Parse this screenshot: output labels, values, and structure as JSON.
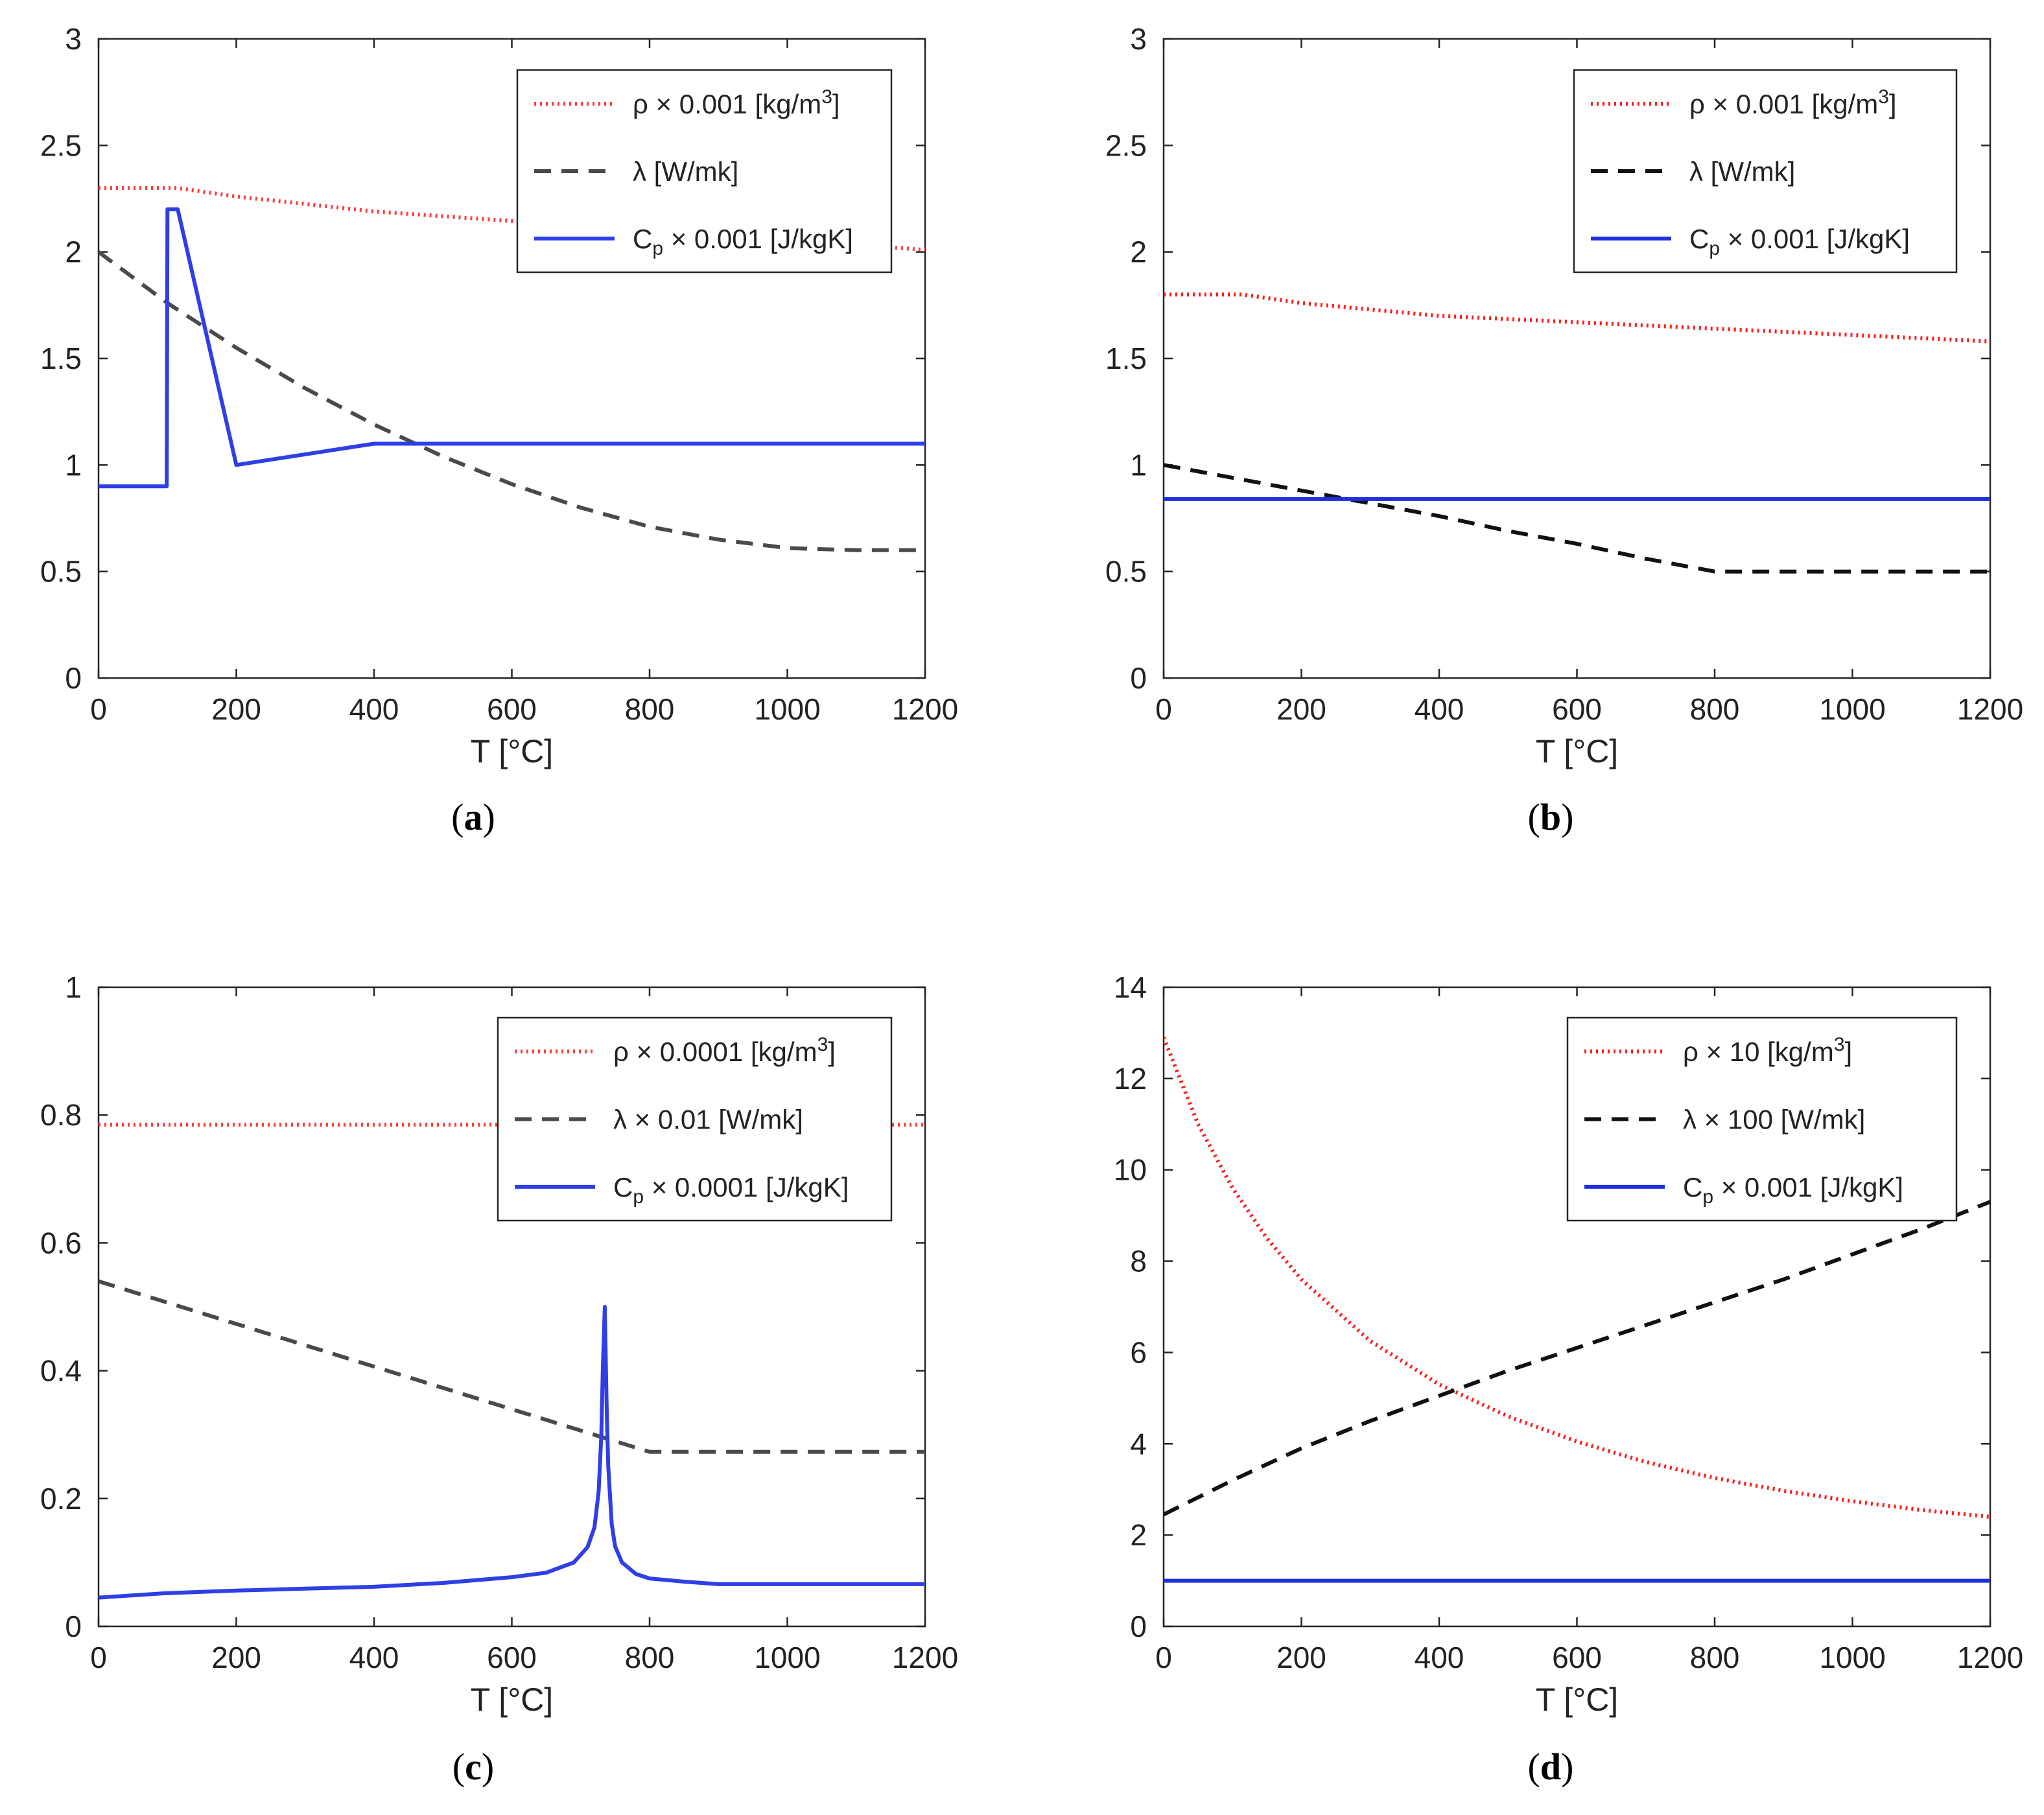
{
  "chart_data": [
    {
      "type": "line",
      "caption": "a",
      "xlabel": "T [°C]",
      "ylabel": "",
      "xlim": [
        0,
        1200
      ],
      "ylim": [
        0,
        3
      ],
      "xticks": [
        0,
        200,
        400,
        600,
        800,
        1000,
        1200
      ],
      "yticks": [
        0,
        0.5,
        1,
        1.5,
        2,
        2.5,
        3
      ],
      "ytick_labels": [
        "0",
        "0.5",
        "1",
        "1.5",
        "2",
        "2.5",
        "3"
      ],
      "legend": "top-right",
      "series": [
        {
          "name": "rho",
          "label_main": "ρ × 0.001 [kg/m",
          "label_sup": "3",
          "label_end": "]",
          "style": "dotted",
          "color": "#ff3b3b",
          "x": [
            0,
            115,
            200,
            400,
            1200
          ],
          "y": [
            2.3,
            2.3,
            2.26,
            2.19,
            2.01
          ]
        },
        {
          "name": "lambda",
          "label_main": "λ [W/mk]",
          "style": "dashed",
          "color": "#4a4a4a",
          "x": [
            0,
            100,
            200,
            300,
            400,
            500,
            600,
            700,
            800,
            900,
            1000,
            1100,
            1200
          ],
          "y": [
            2.0,
            1.76,
            1.55,
            1.36,
            1.19,
            1.04,
            0.91,
            0.8,
            0.71,
            0.65,
            0.61,
            0.6,
            0.6
          ]
        },
        {
          "name": "cp",
          "label_main": "C",
          "label_sub": "p",
          "label_end": " × 0.001 [J/kgK]",
          "style": "solid",
          "color": "#2f3fe6",
          "x": [
            0,
            99,
            100,
            115,
            200,
            400,
            1200
          ],
          "y": [
            0.9,
            0.9,
            2.2,
            2.2,
            1.0,
            1.1,
            1.1
          ]
        }
      ]
    },
    {
      "type": "line",
      "caption": "b",
      "xlabel": "T [°C]",
      "ylabel": "",
      "xlim": [
        0,
        1200
      ],
      "ylim": [
        0,
        3
      ],
      "xticks": [
        0,
        200,
        400,
        600,
        800,
        1000,
        1200
      ],
      "yticks": [
        0,
        0.5,
        1,
        1.5,
        2,
        2.5,
        3
      ],
      "ytick_labels": [
        "0",
        "0.5",
        "1",
        "1.5",
        "2",
        "2.5",
        "3"
      ],
      "legend": "top-right",
      "series": [
        {
          "name": "rho",
          "label_main": "ρ × 0.001 [kg/m",
          "label_sup": "3",
          "label_end": "]",
          "style": "dotted",
          "color": "#ff1a1a",
          "x": [
            0,
            115,
            200,
            400,
            1200
          ],
          "y": [
            1.8,
            1.8,
            1.76,
            1.7,
            1.58
          ]
        },
        {
          "name": "lambda",
          "label_main": "λ [W/mk]",
          "style": "dashed",
          "color": "#111111",
          "x": [
            0,
            100,
            200,
            300,
            400,
            500,
            600,
            700,
            800,
            1200
          ],
          "y": [
            1.0,
            0.94,
            0.88,
            0.82,
            0.76,
            0.69,
            0.63,
            0.56,
            0.5,
            0.5
          ]
        },
        {
          "name": "cp",
          "label_main": "C",
          "label_sub": "p",
          "label_end": " × 0.001  [J/kgK]",
          "style": "solid",
          "color": "#1f2fe0",
          "x": [
            0,
            1200
          ],
          "y": [
            0.84,
            0.84
          ]
        }
      ]
    },
    {
      "type": "line",
      "caption": "c",
      "xlabel": "T [°C]",
      "ylabel": "",
      "xlim": [
        0,
        1200
      ],
      "ylim": [
        0,
        1
      ],
      "xticks": [
        0,
        200,
        400,
        600,
        800,
        1000,
        1200
      ],
      "yticks": [
        0,
        0.2,
        0.4,
        0.6,
        0.8,
        1
      ],
      "ytick_labels": [
        "0",
        "0.2",
        "0.4",
        "0.6",
        "0.8",
        "1"
      ],
      "legend": "top-right",
      "series": [
        {
          "name": "rho",
          "label_main": "ρ × 0.0001 [kg/m",
          "label_sup": "3",
          "label_end": "]",
          "style": "dotted",
          "color": "#ff3b3b",
          "x": [
            0,
            1200
          ],
          "y": [
            0.785,
            0.785
          ]
        },
        {
          "name": "lambda",
          "label_main": "λ × 0.01 [W/mk]",
          "style": "dashed",
          "color": "#4a4a4a",
          "x": [
            0,
            800,
            1200
          ],
          "y": [
            0.54,
            0.273,
            0.273
          ]
        },
        {
          "name": "cp",
          "label_main": "C",
          "label_sub": "p",
          "label_end": " × 0.0001 [J/kgK]",
          "style": "solid",
          "color": "#2f3fe6",
          "x": [
            0,
            100,
            200,
            300,
            400,
            500,
            600,
            650,
            690,
            710,
            720,
            726,
            730,
            732,
            735,
            738,
            740,
            745,
            750,
            760,
            780,
            800,
            850,
            900,
            1200
          ],
          "y": [
            0.045,
            0.052,
            0.056,
            0.059,
            0.062,
            0.068,
            0.077,
            0.084,
            0.1,
            0.124,
            0.155,
            0.21,
            0.3,
            0.4,
            0.5,
            0.33,
            0.25,
            0.16,
            0.125,
            0.1,
            0.082,
            0.075,
            0.07,
            0.066,
            0.066
          ]
        }
      ]
    },
    {
      "type": "line",
      "caption": "d",
      "xlabel": "T [°C]",
      "ylabel": "",
      "xlim": [
        0,
        1200
      ],
      "ylim": [
        0,
        14
      ],
      "xticks": [
        0,
        200,
        400,
        600,
        800,
        1000,
        1200
      ],
      "yticks": [
        0,
        2,
        4,
        6,
        8,
        10,
        12,
        14
      ],
      "ytick_labels": [
        "0",
        "2",
        "4",
        "6",
        "8",
        "10",
        "12",
        "14"
      ],
      "legend": "top-right",
      "series": [
        {
          "name": "rho",
          "label_main": "ρ × 10 [kg/m",
          "label_sup": "3",
          "label_end": "]",
          "style": "dotted",
          "color": "#ff1a1a",
          "x": [
            0,
            50,
            100,
            150,
            200,
            300,
            400,
            500,
            600,
            700,
            800,
            900,
            1000,
            1100,
            1200
          ],
          "y": [
            12.9,
            11.0,
            9.6,
            8.5,
            7.6,
            6.25,
            5.3,
            4.6,
            4.05,
            3.6,
            3.25,
            2.97,
            2.74,
            2.55,
            2.4
          ]
        },
        {
          "name": "lambda",
          "label_main": "λ × 100 [W/mk]",
          "style": "dashed",
          "color": "#111111",
          "x": [
            0,
            100,
            200,
            300,
            400,
            500,
            600,
            700,
            800,
            900,
            1000,
            1100,
            1200
          ],
          "y": [
            2.45,
            3.2,
            3.9,
            4.5,
            5.05,
            5.6,
            6.1,
            6.6,
            7.1,
            7.6,
            8.15,
            8.7,
            9.3
          ]
        },
        {
          "name": "cp",
          "label_main": "C",
          "label_sub": "p",
          "label_end": "  ×  0.001 [J/kgK]",
          "style": "solid",
          "color": "#1f2fe0",
          "x": [
            0,
            1200
          ],
          "y": [
            1.0,
            1.0
          ]
        }
      ]
    }
  ]
}
